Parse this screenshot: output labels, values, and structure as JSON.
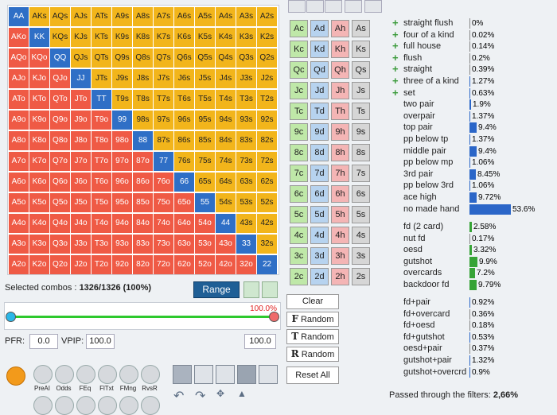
{
  "hand_grid": {
    "ranks": [
      "A",
      "K",
      "Q",
      "J",
      "T",
      "9",
      "8",
      "7",
      "6",
      "5",
      "4",
      "3",
      "2"
    ],
    "colors": {
      "pair": "#2f6fc6",
      "suited": "#f2b51b",
      "offsuit": "#ef5a45"
    }
  },
  "selection": {
    "prefix": "Selected combos : ",
    "value": "1326/1326 (100%)"
  },
  "range_button": "Range",
  "slider": {
    "percent": "100.0%"
  },
  "pfr": {
    "label": "PFR:",
    "value": "0.0"
  },
  "vpip": {
    "label": "VPIP:",
    "value": "100.0",
    "right_value": "100.0"
  },
  "tools": [
    "PreAI",
    "Odds",
    "FEq",
    "FlTxt",
    "FMng",
    "RvsR"
  ],
  "cards": {
    "ranks": [
      "A",
      "K",
      "Q",
      "J",
      "T",
      "9",
      "8",
      "7",
      "6",
      "5",
      "4",
      "3",
      "2"
    ],
    "suits": [
      "c",
      "d",
      "h",
      "s"
    ],
    "colors": {
      "c": "#bfe8a8",
      "d": "#b7d3ef",
      "h": "#f4b5b5",
      "s": "#d6d6d6"
    }
  },
  "buttons": {
    "clear": "Clear",
    "flop_random": {
      "icon": "F",
      "label": "Random"
    },
    "turn_random": {
      "icon": "T",
      "label": "Random"
    },
    "river_random": {
      "icon": "R",
      "label": "Random"
    },
    "reset_all": "Reset All"
  },
  "stats": {
    "made_hands": [
      {
        "name": "straight flush",
        "value": "0%",
        "pct": 0,
        "plus": true
      },
      {
        "name": "four of a kind",
        "value": "0.02%",
        "pct": 0.02,
        "plus": true
      },
      {
        "name": "full house",
        "value": "0.14%",
        "pct": 0.14,
        "plus": true
      },
      {
        "name": "flush",
        "value": "0.2%",
        "pct": 0.2,
        "plus": true
      },
      {
        "name": "straight",
        "value": "0.39%",
        "pct": 0.39,
        "plus": true
      },
      {
        "name": "three of a kind",
        "value": "1.27%",
        "pct": 1.27,
        "plus": true
      },
      {
        "name": "set",
        "value": "0.63%",
        "pct": 0.63,
        "plus": true
      },
      {
        "name": "two pair",
        "value": "1.9%",
        "pct": 1.9
      },
      {
        "name": "overpair",
        "value": "1.37%",
        "pct": 1.37
      },
      {
        "name": "top pair",
        "value": "9.4%",
        "pct": 9.4
      },
      {
        "name": "pp below tp",
        "value": "1.37%",
        "pct": 1.37
      },
      {
        "name": "middle pair",
        "value": "9.4%",
        "pct": 9.4
      },
      {
        "name": "pp below mp",
        "value": "1.06%",
        "pct": 1.06
      },
      {
        "name": "3rd pair",
        "value": "8.45%",
        "pct": 8.45
      },
      {
        "name": "pp below 3rd",
        "value": "1.06%",
        "pct": 1.06
      },
      {
        "name": "ace high",
        "value": "9.72%",
        "pct": 9.72
      },
      {
        "name": "no made hand",
        "value": "53.6%",
        "pct": 53.6
      }
    ],
    "draws": [
      {
        "name": "fd (2 card)",
        "value": "2.58%",
        "pct": 2.58
      },
      {
        "name": "nut fd",
        "value": "0.17%",
        "pct": 0.17
      },
      {
        "name": "oesd",
        "value": "3.32%",
        "pct": 3.32
      },
      {
        "name": "gutshot",
        "value": "9.9%",
        "pct": 9.9
      },
      {
        "name": "overcards",
        "value": "7.2%",
        "pct": 7.2
      },
      {
        "name": "backdoor fd",
        "value": "9.79%",
        "pct": 9.79
      }
    ],
    "combos": [
      {
        "name": "fd+pair",
        "value": "0.92%",
        "pct": 0.92
      },
      {
        "name": "fd+overcard",
        "value": "0.36%",
        "pct": 0.36
      },
      {
        "name": "fd+oesd",
        "value": "0.18%",
        "pct": 0.18
      },
      {
        "name": "fd+gutshot",
        "value": "0.53%",
        "pct": 0.53
      },
      {
        "name": "oesd+pair",
        "value": "0.37%",
        "pct": 0.37
      },
      {
        "name": "gutshot+pair",
        "value": "1.32%",
        "pct": 1.32
      },
      {
        "name": "gutshot+overcrd",
        "value": "0.9%",
        "pct": 0.9
      }
    ]
  },
  "passed": {
    "prefix": "Passed through the filters: ",
    "value": "2,66%"
  }
}
